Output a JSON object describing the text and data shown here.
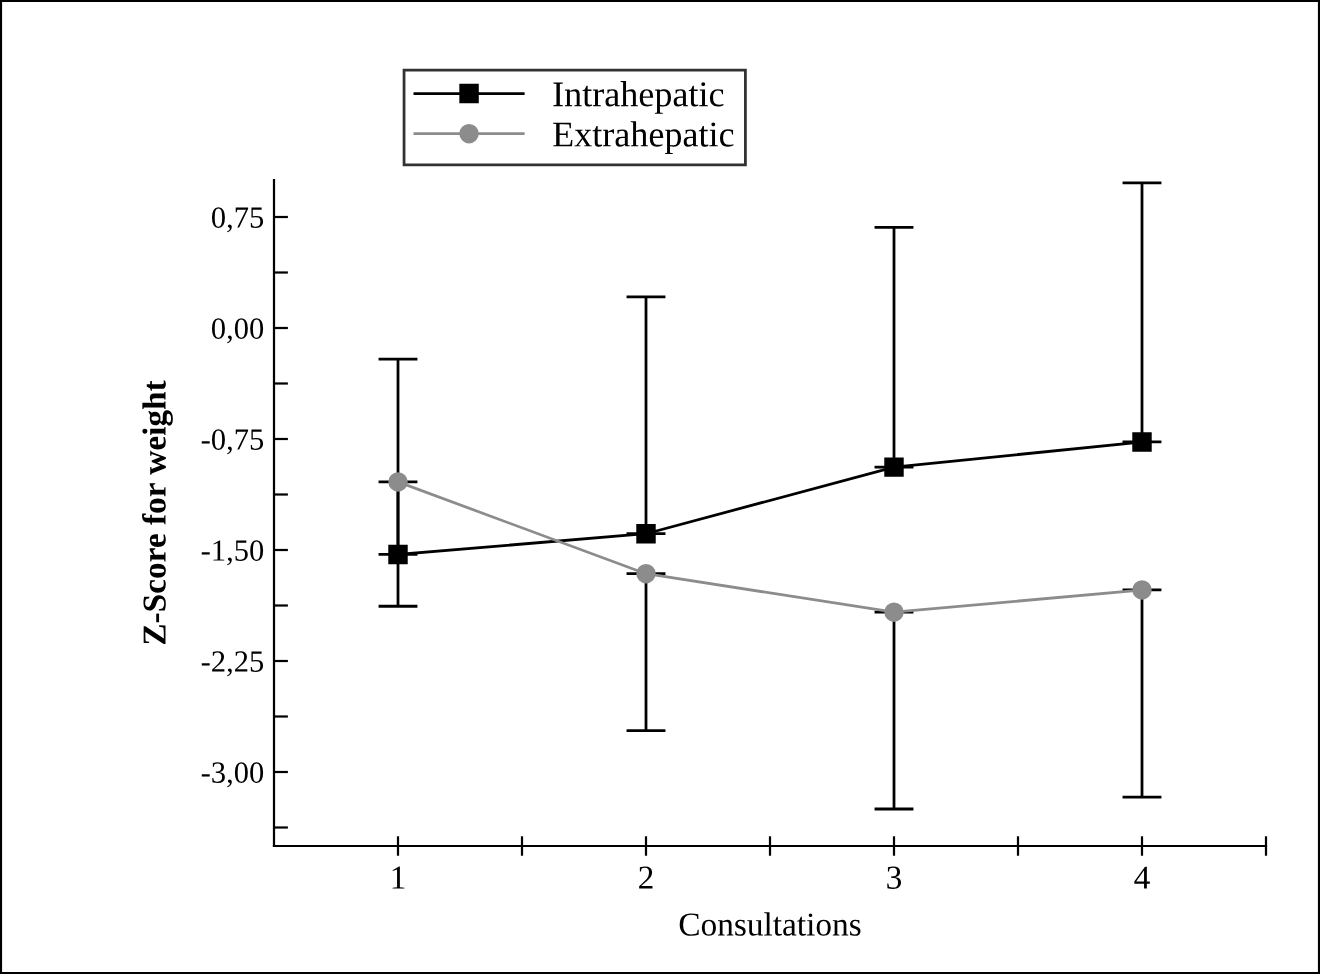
{
  "chart_data": {
    "type": "line",
    "xlabel": "Consultations",
    "ylabel": "Z-Score for weight",
    "x": [
      1,
      2,
      3,
      4
    ],
    "series": [
      {
        "name": "Intrahepatic",
        "color": "#000000",
        "marker": "square",
        "values": [
          -1.53,
          -1.39,
          -0.94,
          -0.77
        ],
        "errors": [
          [
            -1.53,
            -0.21
          ],
          [
            -1.39,
            0.21
          ],
          [
            -0.94,
            0.68
          ],
          [
            -0.77,
            0.98
          ]
        ]
      },
      {
        "name": "Extrahepatic",
        "color": "#8c8c8c",
        "marker": "circle",
        "values": [
          -1.04,
          -1.66,
          -1.92,
          -1.77
        ],
        "errors": [
          [
            -1.88,
            -1.04
          ],
          [
            -2.72,
            -1.66
          ],
          [
            -3.25,
            -1.92
          ],
          [
            -3.17,
            -1.77
          ]
        ]
      }
    ],
    "xlim": [
      0.5,
      4.5
    ],
    "xticks": [
      1,
      {
        "value": 1.5,
        "label": null
      },
      2,
      {
        "value": 2.5,
        "label": null
      },
      3,
      {
        "value": 3.5,
        "label": null
      },
      4,
      {
        "value": 4.5,
        "label": null
      }
    ],
    "ylim": [
      -3.5,
      1.0
    ],
    "yticks": [
      {
        "value": -3.375,
        "label": null
      },
      {
        "value": -3.0,
        "label": "-3,00"
      },
      {
        "value": -2.625,
        "label": null
      },
      {
        "value": -2.25,
        "label": "-2,25"
      },
      {
        "value": -1.875,
        "label": null
      },
      {
        "value": -1.5,
        "label": "-1,50"
      },
      {
        "value": -1.125,
        "label": null
      },
      {
        "value": -0.75,
        "label": "-0,75"
      },
      {
        "value": -0.375,
        "label": null
      },
      {
        "value": 0.0,
        "label": "0,00"
      },
      {
        "value": 0.375,
        "label": null
      },
      {
        "value": 0.75,
        "label": "0,75"
      }
    ],
    "grid": false,
    "legend": "top",
    "line_style": "solid"
  }
}
